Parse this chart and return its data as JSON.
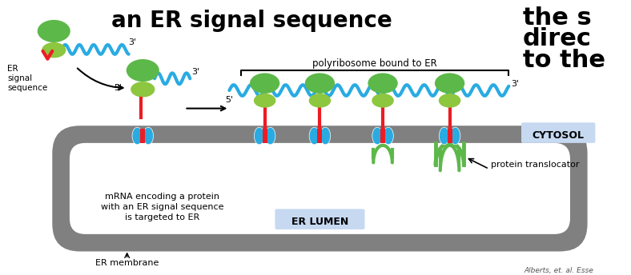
{
  "bg_color": "#ffffff",
  "er_membrane_color": "#808080",
  "er_membrane_dark": "#606060",
  "ribosome_top_color": "#5db84a",
  "ribosome_bottom_color": "#8dc63f",
  "mrna_color": "#29abe2",
  "signal_red": "#ed1c24",
  "translocator_blue": "#29abe2",
  "translocator_red": "#ed1c24",
  "lumen_label": "ER LUMEN",
  "cytosol_label": "CYTOSOL",
  "polyribosome_label": "polyribosome bound to ER",
  "mrna_label": "mRNA encoding a protein\nwith an ER signal sequence\nis targeted to ER",
  "protein_translocator_label": "protein translocator",
  "er_membrane_label": "ER membrane",
  "er_signal_label": "ER\nsignal\nsequence",
  "prime3": "3'",
  "prime5": "5'",
  "citation": "Alberts, et. al. Esse",
  "title_left": "an ER signal sequence",
  "title_right_1": "the s",
  "title_right_2": "direc",
  "title_right_3": "to the",
  "cytosol_box_color": "#c6d9f1"
}
